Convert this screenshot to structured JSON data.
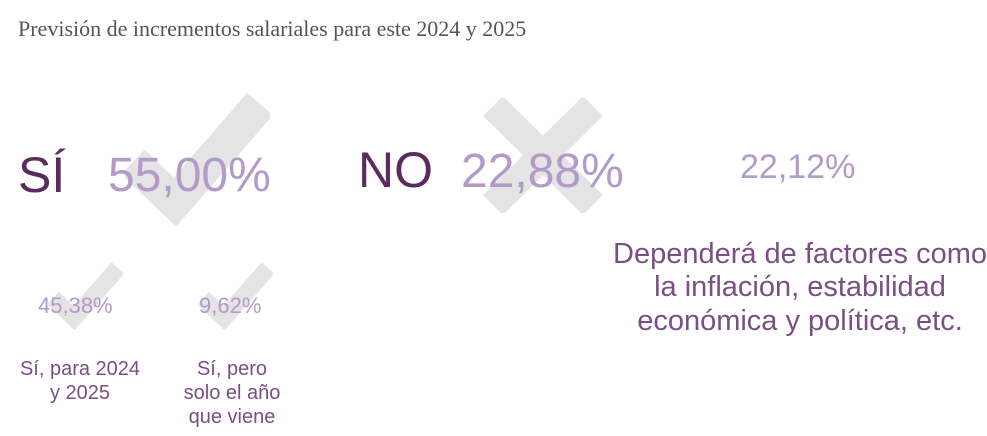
{
  "title": "Previsión de incrementos salariales para este 2024 y 2025",
  "colors": {
    "label": "#5b2a5e",
    "value": "#b49ac8",
    "caption": "#7a4f83",
    "watermark": "#e4e4e4"
  },
  "icons": {
    "yes": "checkmark-icon",
    "no": "cross-icon"
  },
  "chart_data": {
    "type": "table",
    "title": "Previsión de incrementos salariales para este 2024 y 2025",
    "items": [
      {
        "label": "SÍ",
        "value": 55.0,
        "display": "55,00%",
        "icon": "checkmark-icon",
        "breakdown": [
          {
            "label": "Sí, para 2024 y 2025",
            "value": 45.38,
            "display": "45,38%",
            "icon": "checkmark-icon"
          },
          {
            "label": "Sí, pero solo el año que viene",
            "value": 9.62,
            "display": "9,62%",
            "icon": "checkmark-icon"
          }
        ]
      },
      {
        "label": "NO",
        "value": 22.88,
        "display": "22,88%",
        "icon": "cross-icon"
      },
      {
        "label": "Dependerá de factores como la inflación, estabilidad económica y política, etc.",
        "value": 22.12,
        "display": "22,12%"
      }
    ]
  }
}
